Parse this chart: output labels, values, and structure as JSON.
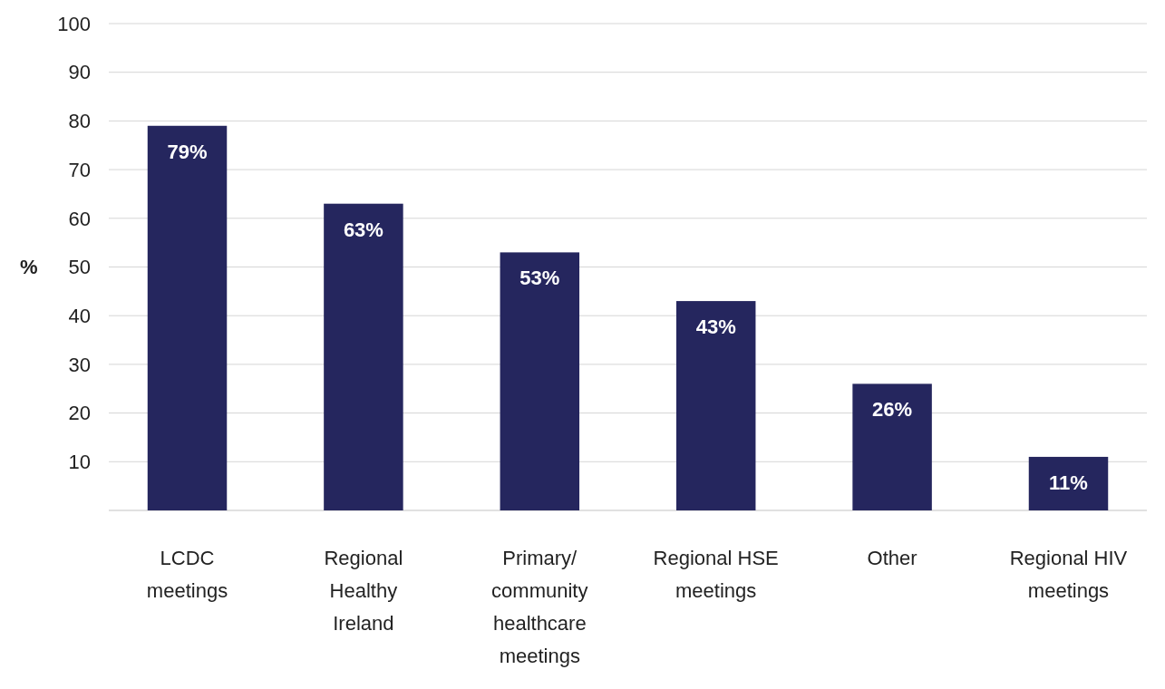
{
  "chart_data": {
    "type": "bar",
    "ylabel": "%",
    "categories": [
      "LCDC meetings",
      "Regional Healthy Ireland",
      "Primary/ community healthcare meetings",
      "Regional HSE meetings",
      "Other",
      "Regional HIV meetings"
    ],
    "values": [
      79,
      63,
      53,
      43,
      26,
      11
    ],
    "color": "#25265e",
    "value_labels": [
      "79%",
      "63%",
      "53%",
      "43%",
      "26%",
      "11%"
    ],
    "ylim": [
      0,
      100
    ],
    "yticks": [
      {
        "value": 0,
        "label": null
      },
      10,
      20,
      30,
      40,
      50,
      60,
      70,
      80,
      90,
      100
    ],
    "grid": "y"
  }
}
